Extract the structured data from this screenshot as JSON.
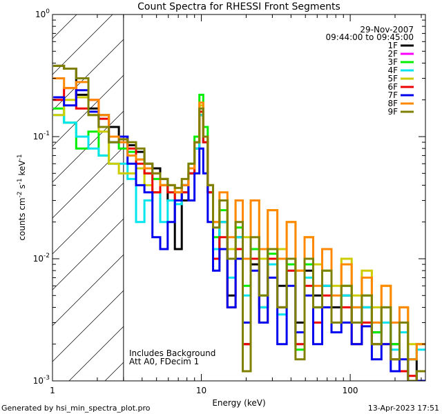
{
  "chart_data": {
    "type": "line",
    "title": "Count Spectra for RHESSI Front Segments",
    "xlabel": "Energy (keV)",
    "ylabel_parts": [
      "counts cm",
      "-2",
      " s",
      "-1",
      " keV",
      "-1"
    ],
    "xscale": "log",
    "yscale": "log",
    "xlim": [
      1,
      320
    ],
    "ylim": [
      0.001,
      1
    ],
    "x_ticks": [
      {
        "value": 1,
        "label": "1"
      },
      {
        "value": 10,
        "label": "10"
      },
      {
        "value": 100,
        "label": "100"
      }
    ],
    "y_ticks": [
      {
        "value": 1,
        "base": "10",
        "exp": "0"
      },
      {
        "value": 0.1,
        "base": "10",
        "exp": "-1"
      },
      {
        "value": 0.01,
        "base": "10",
        "exp": "-2"
      },
      {
        "value": 0.001,
        "base": "10",
        "exp": "-3"
      }
    ],
    "date": "29-Nov-2007",
    "time_range": "09:44:00 to 09:45:00",
    "annotations": [
      "Includes Background",
      "Att A0, FDecim 1"
    ],
    "shaded_region": {
      "x_range": [
        1,
        3
      ],
      "style": "diagonal hatch"
    },
    "footer_left": "Generated by hsi_min_spectra_plot.pro",
    "footer_right": "13-Apr-2023 17:51",
    "series": [
      {
        "name": "1F",
        "color": "#000000",
        "x": [
          1.1,
          1.3,
          1.6,
          1.9,
          2.2,
          2.6,
          3.0,
          3.4,
          3.9,
          4.4,
          5.0,
          5.6,
          6.3,
          7.0,
          7.8,
          8.6,
          9.4,
          10.0,
          10.6,
          11.5,
          12.5,
          14,
          16,
          18,
          20,
          23,
          26,
          30,
          35,
          40,
          46,
          53,
          60,
          70,
          80,
          95,
          110,
          130,
          150,
          175,
          200,
          230,
          260,
          300
        ],
        "y": [
          0.38,
          0.36,
          0.22,
          0.17,
          0.15,
          0.12,
          0.1,
          0.085,
          0.075,
          0.06,
          0.055,
          0.045,
          0.03,
          0.012,
          0.03,
          0.05,
          0.08,
          0.15,
          0.09,
          0.035,
          0.012,
          0.02,
          0.005,
          0.015,
          0.002,
          0.009,
          0.004,
          0.012,
          0.006,
          0.01,
          0.003,
          0.008,
          0.005,
          0.006,
          0.004,
          0.005,
          0.003,
          0.004,
          0.0025,
          0.003,
          0.002,
          0.0012,
          0.0015,
          0.001
        ]
      },
      {
        "name": "2F",
        "color": "#ff00ff",
        "x": [],
        "y": []
      },
      {
        "name": "3F",
        "color": "#00ee00",
        "x": [
          1.1,
          1.3,
          1.6,
          1.9,
          2.2,
          2.6,
          3.0,
          3.4,
          3.9,
          4.4,
          5.0,
          5.6,
          6.3,
          7.0,
          7.8,
          8.6,
          9.4,
          10.0,
          10.6,
          11.5,
          12.5,
          14,
          16,
          18,
          20,
          23,
          26,
          30,
          35,
          40,
          46,
          53,
          60,
          70,
          80,
          95,
          110,
          130,
          150,
          175,
          200,
          230,
          260,
          300
        ],
        "y": [
          0.17,
          0.13,
          0.08,
          0.11,
          0.07,
          0.09,
          0.08,
          0.075,
          0.065,
          0.05,
          0.045,
          0.04,
          0.035,
          0.03,
          0.04,
          0.06,
          0.1,
          0.22,
          0.12,
          0.04,
          0.015,
          0.025,
          0.01,
          0.018,
          0.006,
          0.012,
          0.005,
          0.011,
          0.004,
          0.009,
          0.0018,
          0.009,
          0.004,
          0.008,
          0.003,
          0.006,
          0.004,
          0.005,
          0.0025,
          0.004,
          0.002,
          0.003,
          0.0015,
          0.002
        ]
      },
      {
        "name": "4F",
        "color": "#00e5ee",
        "x": [
          1.1,
          1.3,
          1.6,
          1.9,
          2.2,
          2.6,
          3.0,
          3.4,
          3.9,
          4.4,
          5.0,
          5.6,
          6.3,
          7.0,
          7.8,
          8.6,
          9.4,
          10.0,
          10.6,
          11.5,
          12.5,
          14,
          16,
          18,
          20,
          23,
          26,
          30,
          35,
          40,
          46,
          53,
          60,
          70,
          80,
          95,
          110,
          130,
          150,
          175,
          200,
          230,
          260,
          300
        ],
        "y": [
          0.15,
          0.13,
          0.1,
          0.08,
          0.07,
          0.06,
          0.06,
          0.045,
          0.02,
          0.03,
          0.035,
          0.02,
          0.03,
          0.028,
          0.035,
          0.05,
          0.08,
          0.15,
          0.09,
          0.035,
          0.012,
          0.02,
          0.007,
          0.015,
          0.005,
          0.01,
          0.004,
          0.009,
          0.0035,
          0.008,
          0.002,
          0.007,
          0.003,
          0.006,
          0.003,
          0.005,
          0.003,
          0.004,
          0.002,
          0.003,
          0.0018,
          0.0025,
          0.0015,
          0.0018
        ]
      },
      {
        "name": "5F",
        "color": "#cccc00",
        "x": [
          1.1,
          1.3,
          1.6,
          1.9,
          2.2,
          2.6,
          3.0,
          3.4,
          3.9,
          4.4,
          5.0,
          5.6,
          6.3,
          7.0,
          7.8,
          8.6,
          9.4,
          10.0,
          10.6,
          11.5,
          12.5,
          14,
          16,
          18,
          20,
          23,
          26,
          30,
          35,
          40,
          46,
          53,
          60,
          70,
          80,
          95,
          110,
          130,
          150,
          175,
          200,
          230,
          260,
          300
        ],
        "y": [
          0.15,
          0.2,
          0.21,
          0.15,
          0.11,
          0.06,
          0.05,
          0.05,
          0.055,
          0.04,
          0.035,
          0.04,
          0.04,
          0.035,
          0.04,
          0.055,
          0.09,
          0.18,
          0.1,
          0.04,
          0.02,
          0.03,
          0.012,
          0.03,
          0.015,
          0.03,
          0.01,
          0.025,
          0.012,
          0.02,
          0.008,
          0.015,
          0.009,
          0.012,
          0.006,
          0.01,
          0.005,
          0.008,
          0.004,
          0.006,
          0.003,
          0.004,
          0.002,
          0.002
        ]
      },
      {
        "name": "6F",
        "color": "#ee0000",
        "x": [
          1.1,
          1.3,
          1.6,
          1.9,
          2.2,
          2.6,
          3.0,
          3.4,
          3.9,
          4.4,
          5.0,
          5.6,
          6.3,
          7.0,
          7.8,
          8.6,
          9.4,
          10.0,
          10.6,
          11.5,
          12.5,
          14,
          16,
          18,
          20,
          23,
          26,
          30,
          35,
          40,
          46,
          53,
          60,
          70,
          80,
          95,
          110,
          130,
          150,
          175,
          200,
          230,
          260,
          300
        ],
        "y": [
          0.2,
          0.25,
          0.17,
          0.2,
          0.14,
          0.1,
          0.095,
          0.08,
          0.06,
          0.05,
          0.035,
          0.04,
          0.035,
          0.03,
          0.035,
          0.05,
          0.09,
          0.16,
          0.09,
          0.035,
          0.01,
          0.015,
          0.004,
          0.012,
          0.002,
          0.01,
          0.003,
          0.01,
          0.004,
          0.008,
          0.002,
          0.006,
          0.003,
          0.005,
          0.003,
          0.004,
          0.002,
          0.003,
          0.002,
          0.002,
          0.0015,
          0.0012,
          0.0011,
          0.001
        ]
      },
      {
        "name": "7F",
        "color": "#0000ee",
        "x": [
          1.1,
          1.3,
          1.6,
          1.9,
          2.2,
          2.6,
          3.0,
          3.4,
          3.9,
          4.4,
          5.0,
          5.6,
          6.3,
          7.0,
          7.8,
          8.6,
          9.4,
          10.0,
          10.6,
          11.5,
          12.5,
          14,
          16,
          18,
          20,
          23,
          26,
          30,
          35,
          40,
          46,
          53,
          60,
          70,
          80,
          95,
          110,
          130,
          150,
          175,
          200,
          230,
          260,
          300
        ],
        "y": [
          0.21,
          0.18,
          0.24,
          0.16,
          0.12,
          0.09,
          0.1,
          0.06,
          0.04,
          0.035,
          0.015,
          0.012,
          0.02,
          0.03,
          0.04,
          0.03,
          0.05,
          0.08,
          0.05,
          0.02,
          0.008,
          0.012,
          0.004,
          0.01,
          0.003,
          0.008,
          0.003,
          0.007,
          0.002,
          0.006,
          0.0025,
          0.005,
          0.002,
          0.004,
          0.0025,
          0.003,
          0.002,
          0.0028,
          0.0015,
          0.002,
          0.0012,
          0.0015,
          0.001,
          0.001
        ]
      },
      {
        "name": "8F",
        "color": "#ff8800",
        "x": [
          1.1,
          1.3,
          1.6,
          1.9,
          2.2,
          2.6,
          3.0,
          3.4,
          3.9,
          4.4,
          5.0,
          5.6,
          6.3,
          7.0,
          7.8,
          8.6,
          9.4,
          10.0,
          10.6,
          11.5,
          12.5,
          14,
          16,
          18,
          20,
          23,
          26,
          30,
          35,
          40,
          46,
          53,
          60,
          70,
          80,
          95,
          110,
          130,
          150,
          175,
          200,
          230,
          260,
          300
        ],
        "y": [
          0.3,
          0.25,
          0.28,
          0.2,
          0.15,
          0.1,
          0.09,
          0.07,
          0.065,
          0.055,
          0.05,
          0.04,
          0.04,
          0.035,
          0.04,
          0.055,
          0.09,
          0.19,
          0.1,
          0.04,
          0.02,
          0.035,
          0.015,
          0.03,
          0.01,
          0.03,
          0.012,
          0.025,
          0.01,
          0.02,
          0.008,
          0.015,
          0.006,
          0.012,
          0.005,
          0.009,
          0.004,
          0.007,
          0.003,
          0.006,
          0.003,
          0.004,
          0.0015,
          0.002
        ]
      },
      {
        "name": "9F",
        "color": "#808000",
        "x": [
          1.1,
          1.3,
          1.6,
          1.9,
          2.2,
          2.6,
          3.0,
          3.4,
          3.9,
          4.4,
          5.0,
          5.6,
          6.3,
          7.0,
          7.8,
          8.6,
          9.4,
          10.0,
          10.6,
          11.5,
          12.5,
          14,
          16,
          18,
          20,
          23,
          26,
          30,
          35,
          40,
          46,
          53,
          60,
          70,
          80,
          95,
          110,
          130,
          150,
          175,
          200,
          230,
          260,
          300
        ],
        "y": [
          0.38,
          0.36,
          0.3,
          0.15,
          0.12,
          0.09,
          0.095,
          0.09,
          0.08,
          0.06,
          0.05,
          0.045,
          0.04,
          0.038,
          0.045,
          0.06,
          0.09,
          0.17,
          0.1,
          0.04,
          0.018,
          0.03,
          0.01,
          0.02,
          0.0012,
          0.015,
          0.005,
          0.012,
          0.004,
          0.01,
          0.0015,
          0.01,
          0.004,
          0.008,
          0.003,
          0.006,
          0.003,
          0.005,
          0.002,
          0.004,
          0.0015,
          0.003,
          0.001,
          0.0012
        ]
      }
    ]
  }
}
